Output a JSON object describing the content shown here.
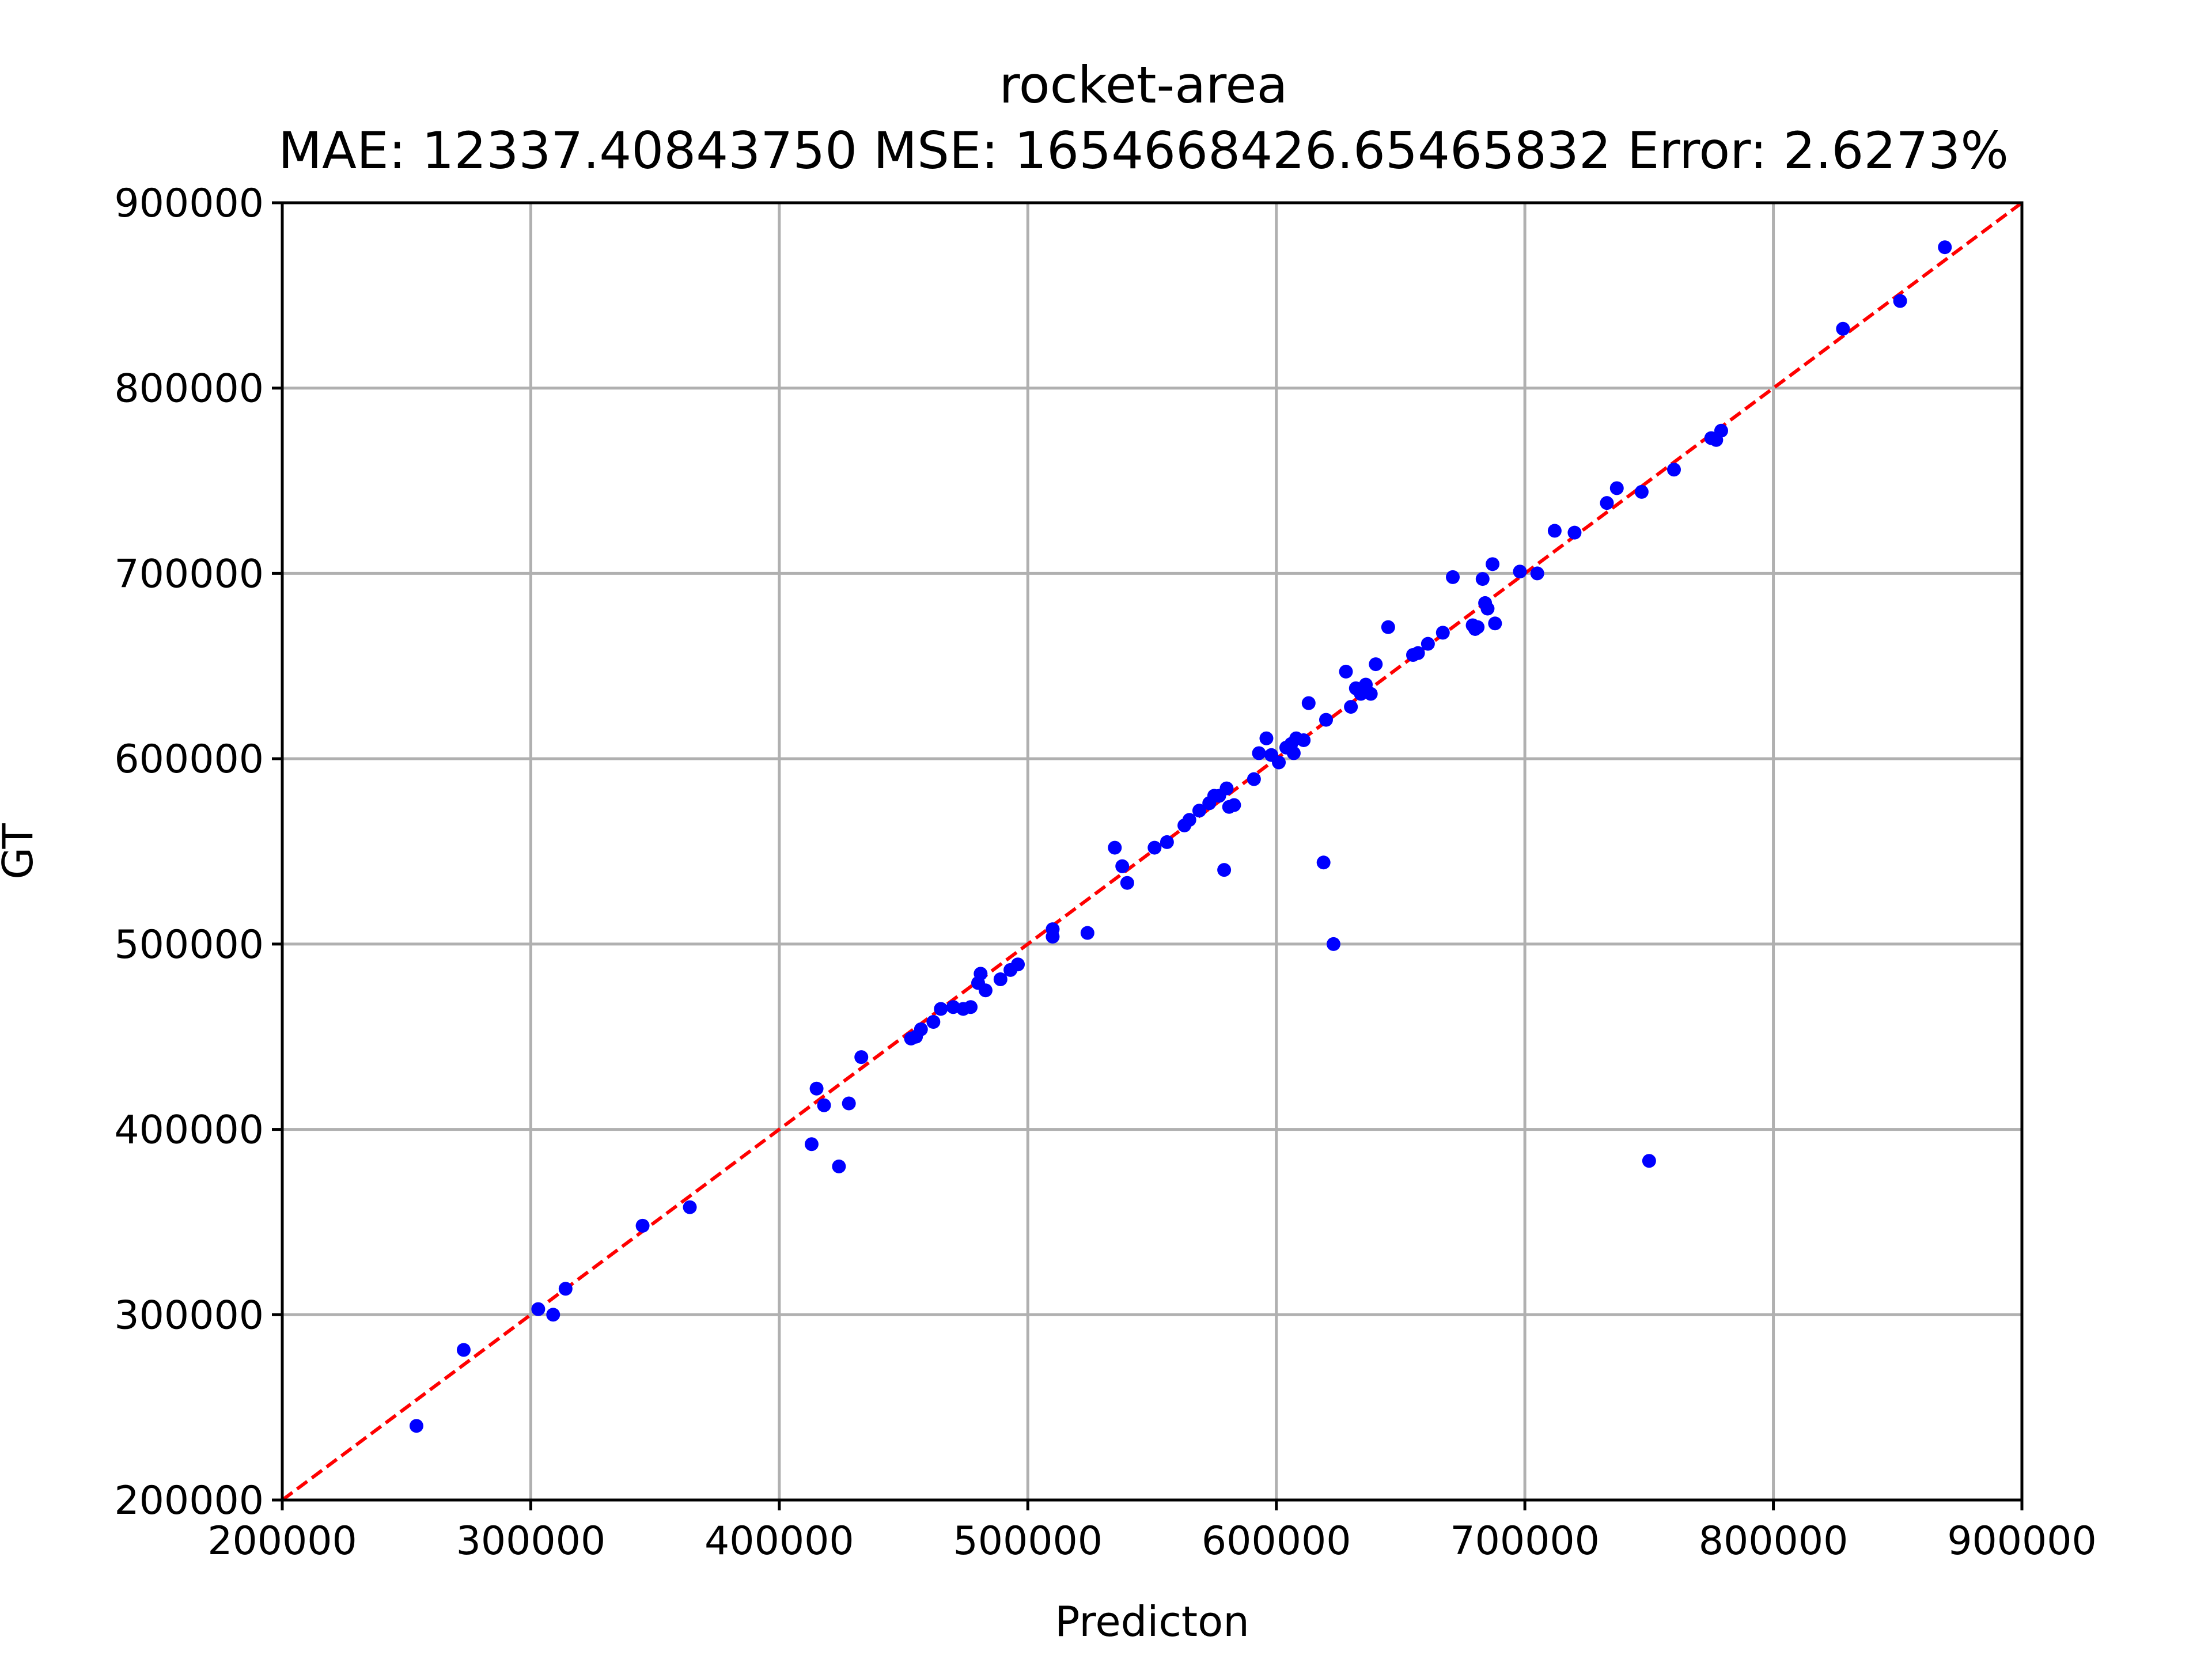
{
  "title": "rocket-area",
  "subtitle": "MAE: 12337.40843750 MSE: 1654668426.65465832 Error: 2.6273%",
  "colors": {
    "points": "#0000ff",
    "reference_line": "#ff0000",
    "grid": "#b0b0b0",
    "axes": "#000000"
  },
  "chart_data": {
    "type": "scatter",
    "title": "rocket-area",
    "subtitle": "MAE: 12337.40843750 MSE: 1654668426.65465832 Error: 2.6273%",
    "xlabel": "Predicton",
    "ylabel": "GT",
    "xlim": [
      200000,
      900000
    ],
    "ylim": [
      200000,
      900000
    ],
    "grid": true,
    "x_ticks": [
      "200000",
      "300000",
      "400000",
      "500000",
      "600000",
      "700000",
      "800000",
      "900000"
    ],
    "y_ticks": [
      "200000",
      "300000",
      "400000",
      "500000",
      "600000",
      "700000",
      "800000",
      "900000"
    ],
    "reference_line": {
      "style": "dashed",
      "from": [
        200000,
        200000
      ],
      "to": [
        900000,
        900000
      ]
    },
    "points": [
      [
        254000,
        240000
      ],
      [
        273000,
        281000
      ],
      [
        303000,
        303000
      ],
      [
        309000,
        300000
      ],
      [
        314000,
        314000
      ],
      [
        345000,
        348000
      ],
      [
        364000,
        358000
      ],
      [
        413000,
        392000
      ],
      [
        415000,
        422000
      ],
      [
        418000,
        413000
      ],
      [
        424000,
        380000
      ],
      [
        428000,
        414000
      ],
      [
        433000,
        439000
      ],
      [
        453000,
        449000
      ],
      [
        455000,
        450000
      ],
      [
        457000,
        454000
      ],
      [
        462000,
        458000
      ],
      [
        465000,
        465000
      ],
      [
        470000,
        466000
      ],
      [
        474000,
        465000
      ],
      [
        477000,
        466000
      ],
      [
        480000,
        479000
      ],
      [
        481000,
        484000
      ],
      [
        483000,
        475000
      ],
      [
        489000,
        481000
      ],
      [
        493000,
        486000
      ],
      [
        496000,
        489000
      ],
      [
        510000,
        504000
      ],
      [
        510000,
        508000
      ],
      [
        524000,
        506000
      ],
      [
        535000,
        552000
      ],
      [
        538000,
        542000
      ],
      [
        540000,
        533000
      ],
      [
        551000,
        552000
      ],
      [
        556000,
        555000
      ],
      [
        563000,
        564000
      ],
      [
        565000,
        567000
      ],
      [
        569000,
        572000
      ],
      [
        573000,
        576000
      ],
      [
        575000,
        580000
      ],
      [
        577000,
        580000
      ],
      [
        579000,
        540000
      ],
      [
        580000,
        584000
      ],
      [
        581000,
        574000
      ],
      [
        583000,
        575000
      ],
      [
        591000,
        589000
      ],
      [
        593000,
        603000
      ],
      [
        596000,
        611000
      ],
      [
        598000,
        602000
      ],
      [
        601000,
        598000
      ],
      [
        604000,
        606000
      ],
      [
        606000,
        608000
      ],
      [
        607000,
        603000
      ],
      [
        608000,
        611000
      ],
      [
        611000,
        610000
      ],
      [
        613000,
        630000
      ],
      [
        619000,
        544000
      ],
      [
        620000,
        621000
      ],
      [
        623000,
        500000
      ],
      [
        628000,
        647000
      ],
      [
        630000,
        628000
      ],
      [
        632000,
        638000
      ],
      [
        634000,
        635000
      ],
      [
        636000,
        640000
      ],
      [
        638000,
        635000
      ],
      [
        640000,
        651000
      ],
      [
        645000,
        671000
      ],
      [
        655000,
        656000
      ],
      [
        657000,
        657000
      ],
      [
        661000,
        662000
      ],
      [
        667000,
        668000
      ],
      [
        671000,
        698000
      ],
      [
        679000,
        672000
      ],
      [
        680000,
        670000
      ],
      [
        681000,
        671000
      ],
      [
        683000,
        697000
      ],
      [
        684000,
        684000
      ],
      [
        685000,
        681000
      ],
      [
        687000,
        705000
      ],
      [
        688000,
        673000
      ],
      [
        698000,
        701000
      ],
      [
        705000,
        700000
      ],
      [
        712000,
        723000
      ],
      [
        720000,
        722000
      ],
      [
        733000,
        738000
      ],
      [
        737000,
        746000
      ],
      [
        747000,
        744000
      ],
      [
        750000,
        383000
      ],
      [
        760000,
        756000
      ],
      [
        775000,
        773000
      ],
      [
        777000,
        772000
      ],
      [
        779000,
        777000
      ],
      [
        828000,
        832000
      ],
      [
        851000,
        847000
      ],
      [
        869000,
        876000
      ]
    ]
  }
}
